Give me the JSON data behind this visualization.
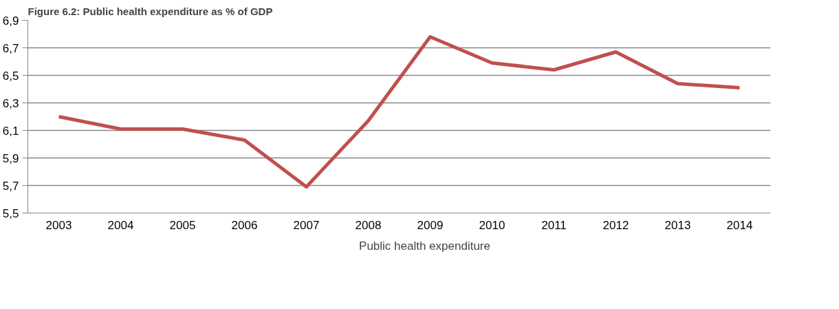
{
  "chart_data": {
    "type": "line",
    "title": "Figure 6.2: Public health expenditure as % of GDP",
    "categories": [
      "2003",
      "2004",
      "2005",
      "2006",
      "2007",
      "2008",
      "2009",
      "2010",
      "2011",
      "2012",
      "2013",
      "2014"
    ],
    "series": [
      {
        "name": "Public health expenditure",
        "color": "#c0504d",
        "values": [
          6.2,
          6.11,
          6.11,
          6.03,
          5.69,
          6.17,
          6.78,
          6.59,
          6.54,
          6.67,
          6.44,
          6.41
        ]
      }
    ],
    "ylim": [
      5.5,
      6.9
    ],
    "yticks": [
      {
        "value": 5.5,
        "label": "5,5"
      },
      {
        "value": 5.7,
        "label": "5,7"
      },
      {
        "value": 5.9,
        "label": "5,9"
      },
      {
        "value": 6.1,
        "label": "6,1"
      },
      {
        "value": 6.3,
        "label": "6,3"
      },
      {
        "value": 6.5,
        "label": "6,5"
      },
      {
        "value": 6.7,
        "label": "6,7"
      },
      {
        "value": 6.9,
        "label": "6,9"
      }
    ],
    "grid": "y",
    "legend": "bottom",
    "marker": "none",
    "line_style": "solid"
  }
}
